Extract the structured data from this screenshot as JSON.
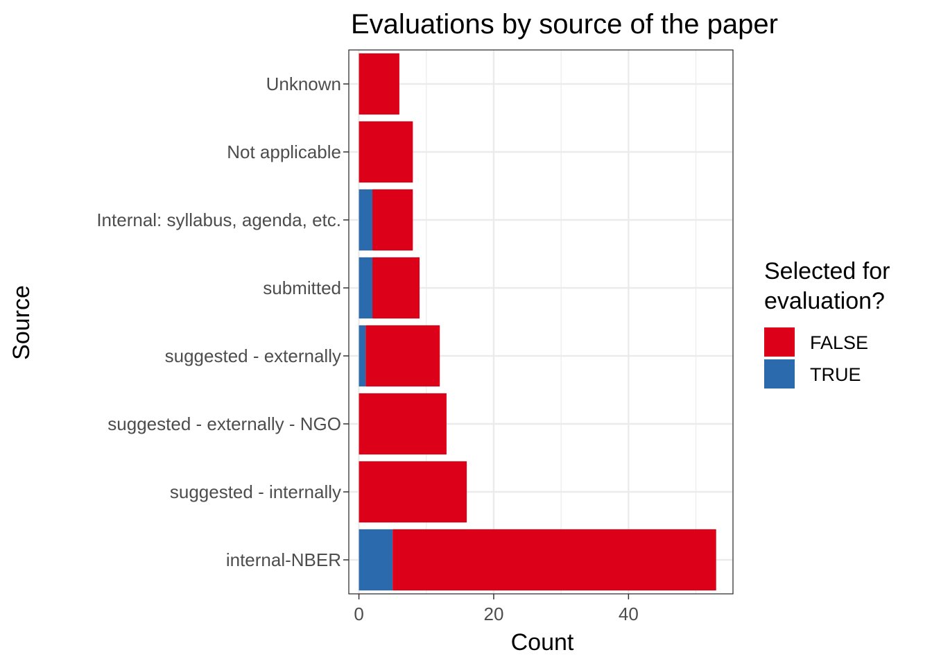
{
  "chart_data": {
    "type": "bar",
    "orientation": "horizontal",
    "stacked": true,
    "title": "Evaluations by source of the paper",
    "xlabel": "Count",
    "ylabel": "Source",
    "xlim": [
      -1.5,
      55.5
    ],
    "x_ticks": [
      0,
      20,
      40
    ],
    "x_tick_labels": [
      "0",
      "20",
      "40"
    ],
    "categories": [
      "Unknown",
      "Not applicable",
      "Internal: syllabus, agenda, etc.",
      "submitted",
      "suggested - externally",
      "suggested - externally - NGO",
      "suggested - internally",
      "internal-NBER"
    ],
    "series": [
      {
        "name": "TRUE",
        "color": "#2b6aac",
        "values": [
          0,
          0,
          2,
          2,
          1,
          0,
          0,
          5
        ]
      },
      {
        "name": "FALSE",
        "color": "#dc0019",
        "values": [
          6,
          8,
          6,
          7,
          11,
          13,
          16,
          48
        ]
      }
    ],
    "grid": true,
    "legend": {
      "title": "Selected for evaluation?",
      "title_lines": [
        "Selected for",
        "evaluation?"
      ],
      "position": "right",
      "entries": [
        {
          "label": "FALSE",
          "color": "#dc0019"
        },
        {
          "label": "TRUE",
          "color": "#2b6aac"
        }
      ]
    }
  }
}
